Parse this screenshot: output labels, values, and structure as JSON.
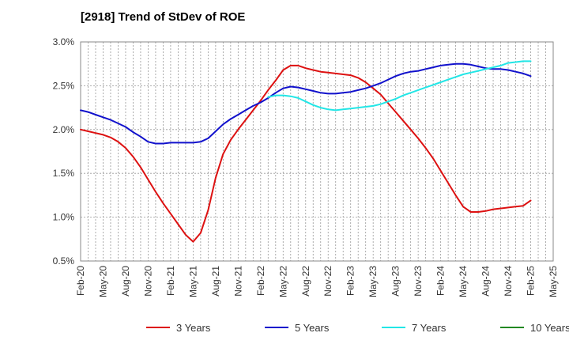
{
  "chart_data": {
    "type": "line",
    "title": "[2918]  Trend of StDev of ROE",
    "xlabel": "",
    "ylabel": "",
    "x_ticks": [
      "Feb-20",
      "May-20",
      "Aug-20",
      "Nov-20",
      "Feb-21",
      "May-21",
      "Aug-21",
      "Nov-21",
      "Feb-22",
      "May-22",
      "Aug-22",
      "Nov-22",
      "Feb-23",
      "May-23",
      "Aug-23",
      "Nov-23",
      "Feb-24",
      "May-24",
      "Aug-24",
      "Nov-24",
      "Feb-25",
      "May-25"
    ],
    "y_ticks": [
      "0.5%",
      "1.0%",
      "1.5%",
      "2.0%",
      "2.5%",
      "3.0%"
    ],
    "ylim": [
      0.5,
      3.0
    ],
    "grid": true,
    "legend_position": "bottom",
    "colors": {
      "3 Years": "#dd1111",
      "5 Years": "#1111cc",
      "7 Years": "#22e6e6",
      "10 Years": "#228822"
    },
    "series": [
      {
        "name": "3 Years",
        "values": [
          2.0,
          1.98,
          1.96,
          1.94,
          1.91,
          1.86,
          1.79,
          1.69,
          1.57,
          1.43,
          1.29,
          1.16,
          1.04,
          0.92,
          0.8,
          0.72,
          0.82,
          1.08,
          1.45,
          1.72,
          1.88,
          2.0,
          2.11,
          2.22,
          2.33,
          2.45,
          2.56,
          2.68,
          2.73,
          2.73,
          2.7,
          2.68,
          2.66,
          2.65,
          2.64,
          2.63,
          2.62,
          2.59,
          2.54,
          2.47,
          2.4,
          2.3,
          2.2,
          2.1,
          2.0,
          1.9,
          1.79,
          1.67,
          1.53,
          1.39,
          1.25,
          1.12,
          1.06,
          1.06,
          1.07,
          1.09,
          1.1,
          1.11,
          1.12,
          1.13,
          1.19
        ]
      },
      {
        "name": "5 Years",
        "values": [
          2.22,
          2.2,
          2.17,
          2.14,
          2.11,
          2.07,
          2.03,
          1.97,
          1.92,
          1.86,
          1.84,
          1.84,
          1.85,
          1.85,
          1.85,
          1.85,
          1.86,
          1.9,
          1.98,
          2.06,
          2.12,
          2.17,
          2.22,
          2.27,
          2.31,
          2.36,
          2.42,
          2.47,
          2.49,
          2.48,
          2.46,
          2.44,
          2.42,
          2.41,
          2.41,
          2.42,
          2.43,
          2.45,
          2.47,
          2.5,
          2.53,
          2.57,
          2.61,
          2.64,
          2.66,
          2.67,
          2.69,
          2.71,
          2.73,
          2.74,
          2.75,
          2.75,
          2.74,
          2.72,
          2.7,
          2.69,
          2.69,
          2.68,
          2.66,
          2.64,
          2.61
        ]
      },
      {
        "name": "7 Years",
        "values": [
          null,
          null,
          null,
          null,
          null,
          null,
          null,
          null,
          null,
          null,
          null,
          null,
          null,
          null,
          null,
          null,
          null,
          null,
          null,
          null,
          null,
          null,
          null,
          null,
          null,
          2.37,
          2.39,
          2.39,
          2.38,
          2.36,
          2.32,
          2.28,
          2.25,
          2.23,
          2.22,
          2.23,
          2.24,
          2.25,
          2.26,
          2.27,
          2.29,
          2.32,
          2.35,
          2.39,
          2.42,
          2.45,
          2.48,
          2.51,
          2.54,
          2.57,
          2.6,
          2.63,
          2.65,
          2.67,
          2.69,
          2.71,
          2.73,
          2.76,
          2.77,
          2.78,
          2.78
        ]
      },
      {
        "name": "10 Years",
        "values": []
      }
    ]
  }
}
